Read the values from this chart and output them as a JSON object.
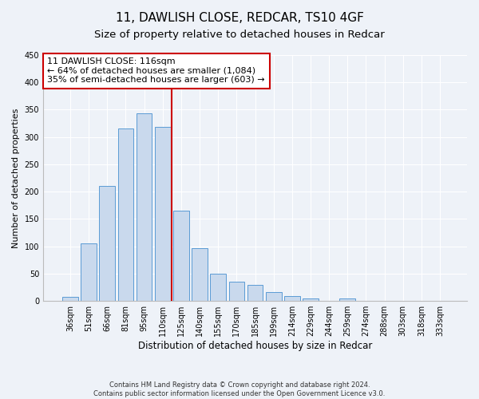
{
  "title": "11, DAWLISH CLOSE, REDCAR, TS10 4GF",
  "subtitle": "Size of property relative to detached houses in Redcar",
  "xlabel": "Distribution of detached houses by size in Redcar",
  "ylabel": "Number of detached properties",
  "bar_labels": [
    "36sqm",
    "51sqm",
    "66sqm",
    "81sqm",
    "95sqm",
    "110sqm",
    "125sqm",
    "140sqm",
    "155sqm",
    "170sqm",
    "185sqm",
    "199sqm",
    "214sqm",
    "229sqm",
    "244sqm",
    "259sqm",
    "274sqm",
    "288sqm",
    "303sqm",
    "318sqm",
    "333sqm"
  ],
  "bar_values": [
    7,
    105,
    210,
    315,
    343,
    318,
    165,
    97,
    50,
    35,
    29,
    17,
    9,
    5,
    1,
    4,
    0,
    0,
    0,
    0,
    0
  ],
  "bar_color": "#c9d9ed",
  "bar_edge_color": "#5b9bd5",
  "vline_x": 5.5,
  "vline_color": "#cc0000",
  "annotation_line1": "11 DAWLISH CLOSE: 116sqm",
  "annotation_line2": "← 64% of detached houses are smaller (1,084)",
  "annotation_line3": "35% of semi-detached houses are larger (603) →",
  "annotation_box_color": "#ffffff",
  "annotation_box_edge_color": "#cc0000",
  "ylim": [
    0,
    450
  ],
  "yticks": [
    0,
    50,
    100,
    150,
    200,
    250,
    300,
    350,
    400,
    450
  ],
  "footnote": "Contains HM Land Registry data © Crown copyright and database right 2024.\nContains public sector information licensed under the Open Government Licence v3.0.",
  "bg_color": "#eef2f8",
  "grid_color": "#ffffff",
  "title_fontsize": 11,
  "subtitle_fontsize": 9.5,
  "xlabel_fontsize": 8.5,
  "ylabel_fontsize": 8,
  "tick_fontsize": 7,
  "annotation_fontsize": 8,
  "footnote_fontsize": 6
}
